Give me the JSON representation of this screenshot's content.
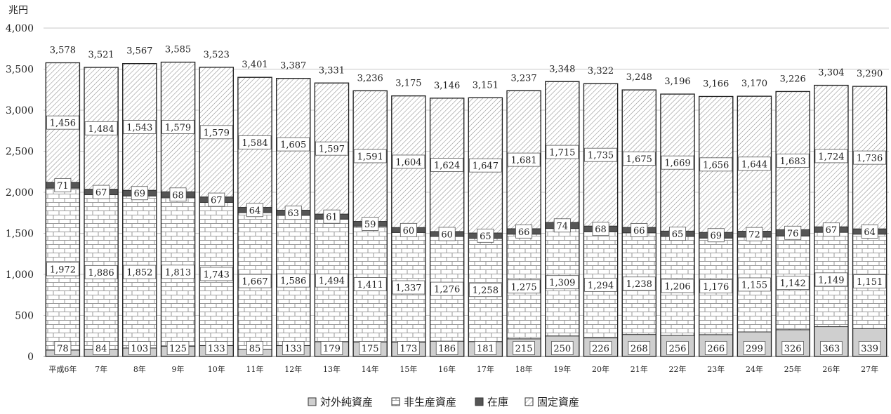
{
  "chart_data": {
    "type": "bar",
    "stacked": true,
    "ylabel": "兆円",
    "ylim": [
      0,
      4000
    ],
    "yticks": [
      0,
      500,
      1000,
      1500,
      2000,
      2500,
      3000,
      3500,
      4000
    ],
    "ytick_labels": [
      "0",
      "500",
      "1,000",
      "1,500",
      "2,000",
      "2,500",
      "3,000",
      "3,500",
      "4,000"
    ],
    "grid": true,
    "legend_position": "bottom",
    "categories": [
      "平成6年",
      "7年",
      "8年",
      "9年",
      "10年",
      "11年",
      "12年",
      "13年",
      "14年",
      "15年",
      "16年",
      "17年",
      "18年",
      "19年",
      "20年",
      "21年",
      "22年",
      "23年",
      "24年",
      "25年",
      "26年",
      "27年"
    ],
    "series": [
      {
        "name": "対外純資産",
        "color": "#cfcfcf",
        "pattern": "solid",
        "values": [
          78,
          84,
          103,
          125,
          133,
          85,
          133,
          179,
          175,
          173,
          186,
          181,
          215,
          250,
          226,
          268,
          256,
          266,
          299,
          326,
          363,
          339
        ],
        "labels": [
          "78",
          "84",
          "103",
          "125",
          "133",
          "85",
          "133",
          "179",
          "175",
          "173",
          "186",
          "181",
          "215",
          "250",
          "226",
          "268",
          "256",
          "266",
          "299",
          "326",
          "363",
          "339"
        ]
      },
      {
        "name": "非生産資産",
        "color": "#ffffff",
        "pattern": "brick",
        "values": [
          1972,
          1886,
          1852,
          1813,
          1743,
          1667,
          1586,
          1494,
          1411,
          1337,
          1276,
          1258,
          1275,
          1309,
          1294,
          1238,
          1206,
          1176,
          1155,
          1142,
          1149,
          1151
        ],
        "labels": [
          "1,972",
          "1,886",
          "1,852",
          "1,813",
          "1,743",
          "1,667",
          "1,586",
          "1,494",
          "1,411",
          "1,337",
          "1,276",
          "1,258",
          "1,275",
          "1,309",
          "1,294",
          "1,238",
          "1,206",
          "1,176",
          "1,155",
          "1,142",
          "1,149",
          "1,151"
        ]
      },
      {
        "name": "在庫",
        "color": "#555555",
        "pattern": "solid",
        "values": [
          71,
          67,
          69,
          68,
          67,
          64,
          63,
          61,
          59,
          60,
          60,
          65,
          66,
          74,
          68,
          66,
          65,
          69,
          72,
          76,
          67,
          64
        ],
        "labels": [
          "71",
          "67",
          "69",
          "68",
          "67",
          "64",
          "63",
          "61",
          "59",
          "60",
          "60",
          "65",
          "66",
          "74",
          "68",
          "66",
          "65",
          "69",
          "72",
          "76",
          "67",
          "64"
        ]
      },
      {
        "name": "固定資産",
        "color": "#ffffff",
        "pattern": "diagonal",
        "values": [
          1456,
          1484,
          1543,
          1579,
          1579,
          1584,
          1605,
          1597,
          1591,
          1604,
          1624,
          1647,
          1681,
          1715,
          1735,
          1675,
          1669,
          1656,
          1644,
          1683,
          1724,
          1736
        ],
        "labels": [
          "1,456",
          "1,484",
          "1,543",
          "1,579",
          "1,579",
          "1,584",
          "1,605",
          "1,597",
          "1,591",
          "1,604",
          "1,624",
          "1,647",
          "1,681",
          "1,715",
          "1,735",
          "1,675",
          "1,669",
          "1,656",
          "1,644",
          "1,683",
          "1,724",
          "1,736"
        ]
      }
    ],
    "totals": [
      3578,
      3521,
      3567,
      3585,
      3523,
      3401,
      3387,
      3331,
      3236,
      3175,
      3146,
      3151,
      3237,
      3348,
      3322,
      3248,
      3196,
      3166,
      3170,
      3226,
      3304,
      3290
    ],
    "total_labels": [
      "3,578",
      "3,521",
      "3,567",
      "3,585",
      "3,523",
      "3,401",
      "3,387",
      "3,331",
      "3,236",
      "3,175",
      "3,146",
      "3,151",
      "3,237",
      "3,348",
      "3,322",
      "3,248",
      "3,196",
      "3,166",
      "3,170",
      "3,226",
      "3,304",
      "3,290"
    ]
  }
}
